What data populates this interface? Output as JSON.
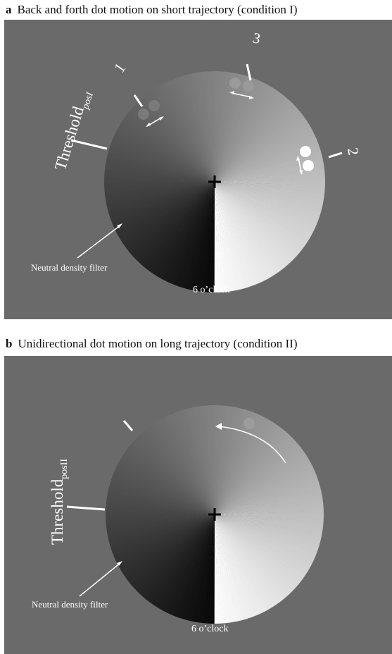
{
  "panel_a": {
    "letter": "a",
    "title": "Back and forth dot motion on short trajectory (condition I)",
    "threshold_main": "Threshold",
    "threshold_sub": "posI",
    "mark_1": "1",
    "mark_2": "2",
    "mark_3": "3",
    "filter_label": "Neutral density filter",
    "clock_label": "6 o’clock"
  },
  "panel_b": {
    "letter": "b",
    "title": "Unidirectional dot motion on long trajectory (condition II)",
    "threshold_main": "Threshold",
    "threshold_sub": "posII",
    "filter_label": "Neutral density filter",
    "clock_label": "6 o’clock"
  }
}
